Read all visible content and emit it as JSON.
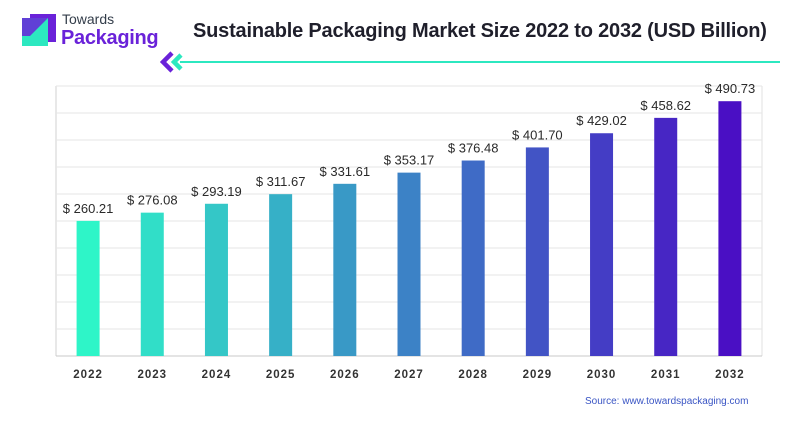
{
  "header": {
    "logo_line1": "Towards",
    "logo_line2": "Packaging",
    "title": "Sustainable Packaging Market Size 2022 to 2032 (USD Billion)"
  },
  "source": "Source: www.towardspackaging.com",
  "colors": {
    "brand": "#6a22d9",
    "accent": "#2ce8c0",
    "bar_start": "#2ef5c8",
    "bar_end": "#4a0fc4"
  },
  "chart_data": {
    "type": "bar",
    "title": "Sustainable Packaging Market Size 2022 to 2032 (USD Billion)",
    "categories": [
      "2022",
      "2023",
      "2024",
      "2025",
      "2026",
      "2027",
      "2028",
      "2029",
      "2030",
      "2031",
      "2032"
    ],
    "values": [
      260.21,
      276.08,
      293.19,
      311.67,
      331.61,
      353.17,
      376.48,
      401.7,
      429.02,
      458.62,
      490.73
    ],
    "data_labels": [
      "$ 260.21",
      "$ 276.08",
      "$ 293.19",
      "$ 311.67",
      "$ 331.61",
      "$ 353.17",
      "$ 376.48",
      "$ 401.70",
      "$ 429.02",
      "$ 458.62",
      "$ 490.73"
    ],
    "xlabel": "",
    "ylabel": "",
    "grid": true,
    "legend": "none"
  }
}
